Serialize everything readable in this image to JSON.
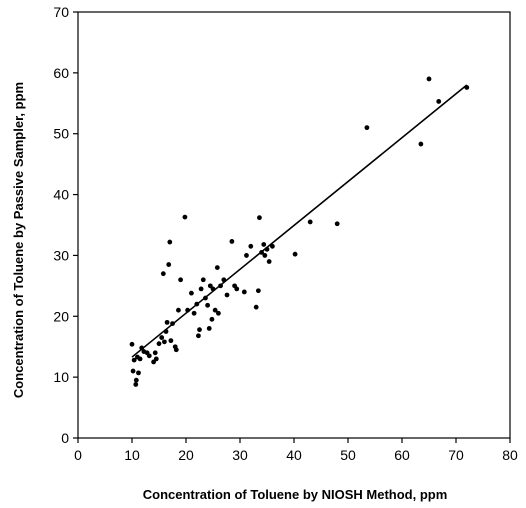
{
  "chart_data": {
    "type": "scatter",
    "title": "",
    "xlabel": "Concentration of Toluene by NIOSH Method, ppm",
    "ylabel": "Concentration of Toluene by Passive Sampler, ppm",
    "xlim": [
      0,
      80
    ],
    "ylim": [
      0,
      70
    ],
    "xticks": [
      0,
      10,
      20,
      30,
      40,
      50,
      60,
      70,
      80
    ],
    "yticks": [
      0,
      10,
      20,
      30,
      40,
      50,
      60,
      70
    ],
    "grid": false,
    "legend": "none",
    "colors": {
      "points": "#000000",
      "line": "#000000",
      "axes": "#000000"
    },
    "fit_line": {
      "x": [
        10,
        72
      ],
      "y": [
        13.3,
        58
      ]
    },
    "series": [
      {
        "x": [
          10.2,
          10.0,
          10.4,
          10.8,
          10.7,
          11.2,
          11.0,
          11.5,
          11.8,
          12.2,
          12.8,
          13.2,
          14.0,
          14.3,
          14.5,
          15.0,
          15.5,
          15.8,
          16.0,
          16.3,
          16.5,
          16.8,
          17.0,
          17.2,
          17.5,
          18.0,
          18.2,
          18.6,
          19.0,
          19.8,
          20.3,
          21.0,
          21.5,
          22.0,
          22.3,
          22.5,
          22.8,
          23.2,
          23.6,
          24.0,
          24.3,
          24.5,
          24.8,
          25.0,
          25.4,
          25.8,
          26.0,
          26.4,
          27.0,
          27.6,
          28.5,
          29.0,
          29.4,
          30.8,
          31.2,
          32.0,
          33.0,
          33.4,
          33.6,
          34.0,
          34.4,
          34.6,
          35.0,
          35.4,
          36.0,
          40.2,
          43.0,
          48.0,
          53.5,
          63.5,
          65.0,
          66.8,
          72.0
        ],
        "y": [
          11.0,
          15.4,
          12.8,
          9.5,
          8.8,
          10.7,
          13.3,
          13.0,
          14.8,
          14.2,
          14.0,
          13.5,
          12.5,
          14.0,
          13.0,
          15.5,
          16.5,
          27.0,
          15.8,
          17.5,
          19.0,
          28.5,
          32.2,
          16.0,
          18.8,
          15.0,
          14.5,
          21.0,
          26.0,
          36.3,
          21.0,
          23.8,
          20.5,
          22.0,
          16.8,
          17.8,
          24.5,
          26.0,
          23.0,
          21.8,
          18.0,
          25.0,
          19.5,
          24.5,
          21.0,
          28.0,
          20.5,
          25.0,
          26.0,
          23.5,
          32.3,
          25.0,
          24.5,
          24.0,
          30.0,
          31.5,
          21.5,
          24.2,
          36.2,
          30.5,
          31.8,
          30.0,
          31.0,
          29.0,
          31.5,
          30.2,
          35.5,
          35.2,
          51.0,
          48.3,
          59.0,
          55.3,
          57.6
        ]
      }
    ]
  }
}
